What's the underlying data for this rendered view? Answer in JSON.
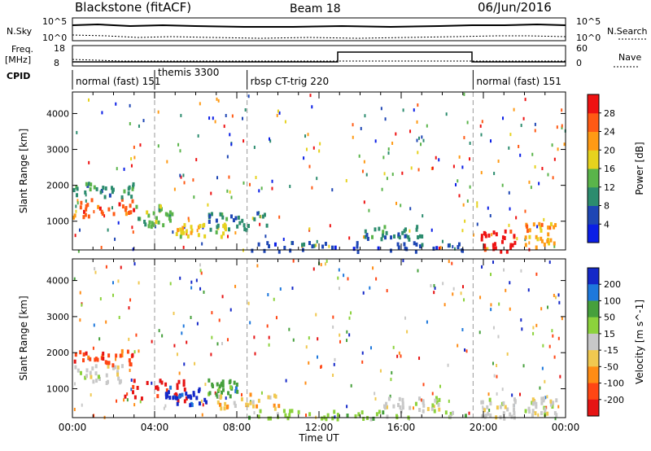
{
  "header": {
    "station": "Blackstone (fitACF)",
    "beam": "Beam 18",
    "date": "06/Jun/2016"
  },
  "top_panels": {
    "nsky_label": "N.Sky",
    "nsearch_label": "N.Search",
    "freq_label_line1": "Freq.",
    "freq_label_line2": "[MHz]",
    "nave_label": "Nave",
    "cpid_label": "CPID",
    "noise_ticks_left": [
      "10^5",
      "10^0"
    ],
    "noise_ticks_right": [
      "10^5",
      "10^0"
    ],
    "freq_ticks": [
      "18",
      "8"
    ],
    "nave_ticks": [
      "60",
      "0"
    ]
  },
  "cpid_segments": [
    {
      "label": "normal (fast) 151",
      "start_hour": 0.0
    },
    {
      "label": "themis 3300",
      "start_hour": 4.0
    },
    {
      "label": "rbsp CT-trig 220",
      "start_hour": 8.5
    },
    {
      "label": "normal (fast) 151",
      "start_hour": 19.5
    }
  ],
  "chart_data": [
    {
      "type": "heatmap",
      "name": "power",
      "xlabel": "",
      "ylabel": "Slant Range [km]",
      "xlim": [
        0,
        24
      ],
      "ylim": [
        200,
        4600
      ],
      "yticks": [
        "1000",
        "2000",
        "3000",
        "4000"
      ],
      "colorbar_label": "Power [dB]",
      "colorbar_ticks": [
        "4",
        "8",
        "12",
        "16",
        "20",
        "24",
        "28"
      ],
      "colors": [
        "#0a1ee6",
        "#1e46b4",
        "#2c8c6e",
        "#5ab44a",
        "#e6d21e",
        "#ff9a14",
        "#ff5a14",
        "#ee1212"
      ],
      "regions": [
        {
          "t0": 0.0,
          "t1": 3.0,
          "r0": 1150,
          "r1": 1700,
          "level": 6
        },
        {
          "t0": 0.0,
          "t1": 3.0,
          "r0": 1700,
          "r1": 2100,
          "level": 2
        },
        {
          "t0": 3.0,
          "t1": 5.0,
          "r0": 900,
          "r1": 1500,
          "level": 3
        },
        {
          "t0": 5.0,
          "t1": 7.5,
          "r0": 600,
          "r1": 1000,
          "level": 4
        },
        {
          "t0": 6.5,
          "t1": 9.5,
          "r0": 800,
          "r1": 1300,
          "level": 2
        },
        {
          "t0": 8.5,
          "t1": 19.5,
          "r0": 200,
          "r1": 450,
          "level": 1
        },
        {
          "t0": 14.0,
          "t1": 17.0,
          "r0": 500,
          "r1": 900,
          "level": 2
        },
        {
          "t0": 19.8,
          "t1": 21.5,
          "r0": 200,
          "r1": 800,
          "level": 7
        },
        {
          "t0": 22.0,
          "t1": 23.5,
          "r0": 300,
          "r1": 1000,
          "level": 5
        }
      ]
    },
    {
      "type": "heatmap",
      "name": "velocity",
      "xlabel": "Time UT",
      "ylabel": "Slant Range [km]",
      "xlim": [
        0,
        24
      ],
      "ylim": [
        200,
        4600
      ],
      "xticks": [
        "00:00",
        "04:00",
        "08:00",
        "12:00",
        "16:00",
        "20:00",
        "00:00"
      ],
      "yticks": [
        "1000",
        "2000",
        "3000",
        "4000"
      ],
      "colorbar_label": "Velocity [m s^-1]",
      "colorbar_ticks": [
        "200",
        "100",
        "50",
        "15",
        "-15",
        "-50",
        "-100",
        "-200"
      ],
      "colors": [
        "#1428c8",
        "#1e78dc",
        "#46a03c",
        "#8cd23c",
        "#c8c8c8",
        "#f0c850",
        "#ff8c14",
        "#ff4614",
        "#e61414"
      ],
      "regions": [
        {
          "t0": 0.0,
          "t1": 2.5,
          "r0": 1200,
          "r1": 1700,
          "level": 4
        },
        {
          "t0": 0.0,
          "t1": 3.0,
          "r0": 1700,
          "r1": 2100,
          "level": 7
        },
        {
          "t0": 2.5,
          "t1": 5.5,
          "r0": 700,
          "r1": 1300,
          "level": 8
        },
        {
          "t0": 4.5,
          "t1": 6.5,
          "r0": 600,
          "r1": 1100,
          "level": 0
        },
        {
          "t0": 6.5,
          "t1": 8.0,
          "r0": 800,
          "r1": 1300,
          "level": 2
        },
        {
          "t0": 7.0,
          "t1": 10.0,
          "r0": 500,
          "r1": 900,
          "level": 5
        },
        {
          "t0": 8.5,
          "t1": 19.5,
          "r0": 200,
          "r1": 450,
          "level": 3
        },
        {
          "t0": 15.0,
          "t1": 18.0,
          "r0": 400,
          "r1": 800,
          "level": 4
        },
        {
          "t0": 19.8,
          "t1": 21.5,
          "r0": 200,
          "r1": 800,
          "level": 4
        },
        {
          "t0": 22.0,
          "t1": 23.5,
          "r0": 300,
          "r1": 800,
          "level": 4
        }
      ]
    }
  ]
}
